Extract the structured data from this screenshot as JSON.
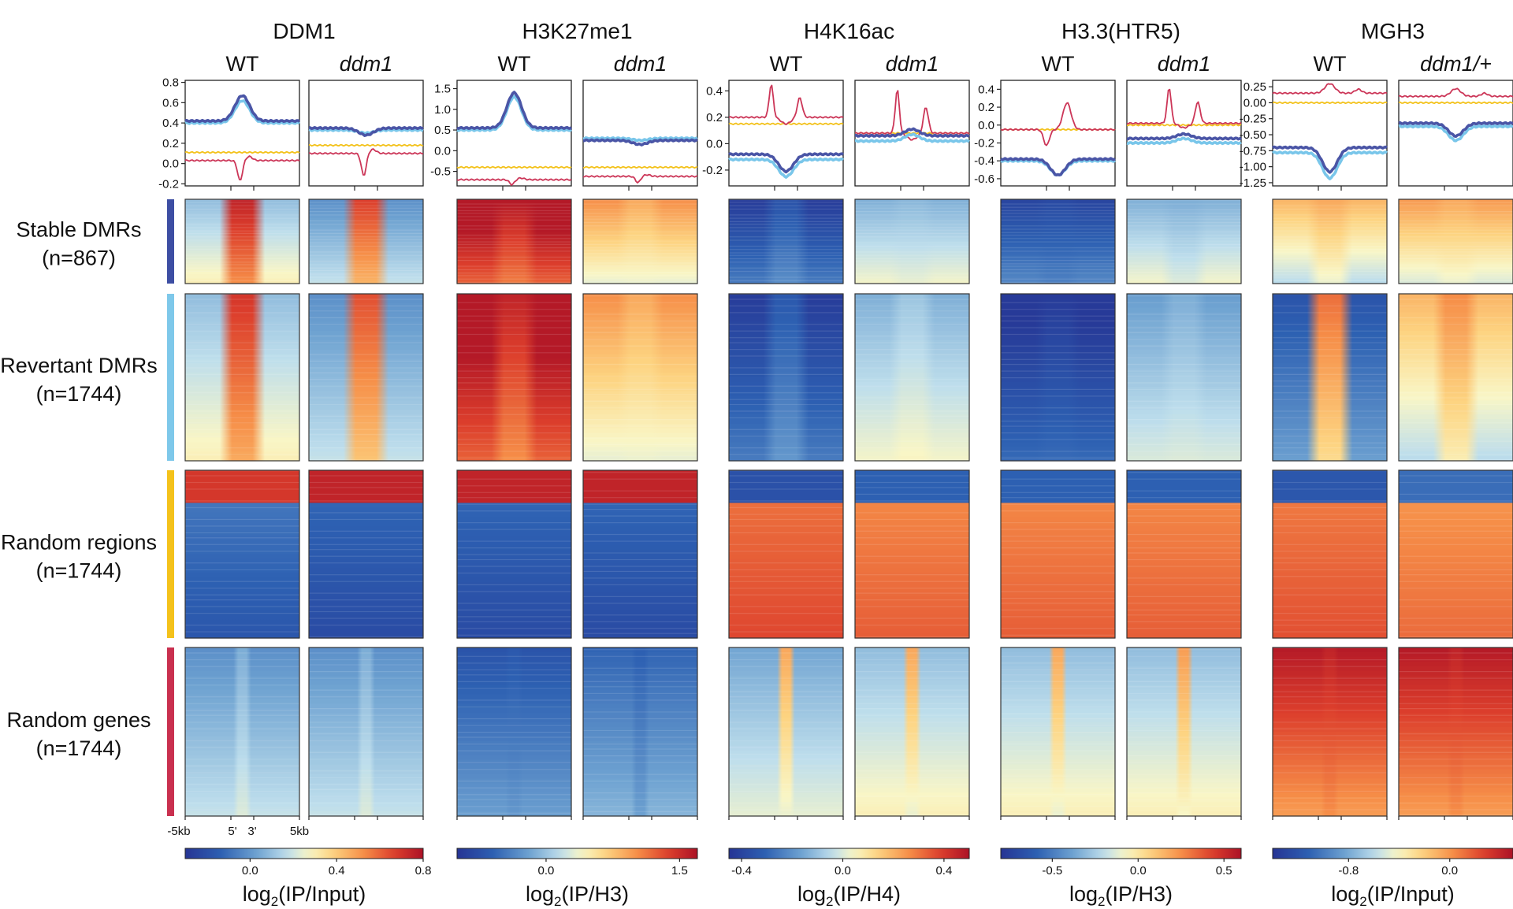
{
  "chart_data": {
    "type": "heatmap",
    "description_text": "Profile plots and heatmaps of chromatin marks over DMR and control regions",
    "x_axis": {
      "ticks": [
        "-5kb",
        "5'",
        "3'",
        "5kb"
      ]
    },
    "rows": [
      {
        "label": "Stable DMRs",
        "n": "(n=867)",
        "color": "#3d4ea3",
        "pattern": "stable"
      },
      {
        "label": "Revertant DMRs",
        "n": "(n=1744)",
        "color": "#7ec8ea",
        "pattern": "revertant"
      },
      {
        "label": "Random regions",
        "n": "(n=1744)",
        "color": "#f4c21b",
        "pattern": "regions"
      },
      {
        "label": "Random genes",
        "n": "(n=1744)",
        "color": "#c9304f",
        "pattern": "genes"
      }
    ],
    "line_colors": {
      "stable": "#4a55a6",
      "revertant": "#79c6ea",
      "regions": "#f3c21c",
      "genes": "#cc3658"
    },
    "marks": [
      {
        "title": "DDM1",
        "conditions": [
          {
            "label": "WT",
            "italic": false
          },
          {
            "label": "ddm1",
            "italic": true
          }
        ],
        "yticks": [
          "0.8",
          "0.6",
          "0.4",
          "0.2",
          "0.0",
          "-0.2"
        ],
        "ylim": [
          -0.22,
          0.82
        ],
        "profiles": [
          {
            "stable": {
              "base": 0.42,
              "peak": 0.25
            },
            "revertant": {
              "base": 0.4,
              "peak": 0.22
            },
            "regions": {
              "base": 0.11,
              "peak": 0.0
            },
            "genes": {
              "base": 0.03,
              "dip": -0.2
            }
          },
          {
            "stable": {
              "base": 0.35,
              "peak": -0.07
            },
            "revertant": {
              "base": 0.33,
              "peak": -0.03
            },
            "regions": {
              "base": 0.18,
              "peak": 0.0
            },
            "genes": {
              "base": 0.1,
              "dip": -0.22
            }
          }
        ],
        "heat": [
          {
            "stable": [
              0.45,
              0.55,
              0.85
            ],
            "revertant": [
              0.45,
              0.58,
              0.8
            ],
            "regions": [
              0.1,
              0.55,
              0.1
            ],
            "genes": [
              0.35,
              0.22,
              0.4
            ]
          },
          {
            "stable": [
              0.35,
              0.48,
              0.78
            ],
            "revertant": [
              0.35,
              0.48,
              0.75
            ],
            "regions": [
              0.05,
              0.55,
              0.05
            ],
            "genes": [
              0.35,
              0.25,
              0.4
            ]
          }
        ],
        "colorbar": {
          "ticks": [
            "0.0",
            "0.4",
            "0.8"
          ],
          "tick_values": [
            0.0,
            0.4,
            0.8
          ],
          "range": [
            -0.3,
            0.8
          ],
          "label_pre": "log",
          "label_sub": "2",
          "label_post": "(IP/Input)"
        }
      },
      {
        "title": "H3K27me1",
        "conditions": [
          {
            "label": "WT",
            "italic": false
          },
          {
            "label": "ddm1",
            "italic": true
          }
        ],
        "yticks": [
          "1.5",
          "1.0",
          "0.5",
          "0.0",
          "-0.5"
        ],
        "ylim": [
          -0.85,
          1.7
        ],
        "profiles": [
          {
            "stable": {
              "base": 0.55,
              "peak": 0.85
            },
            "revertant": {
              "base": 0.5,
              "peak": 0.8
            },
            "regions": {
              "base": -0.4,
              "peak": 0.0
            },
            "genes": {
              "base": -0.7,
              "dip": -0.12
            }
          },
          {
            "stable": {
              "base": 0.25,
              "peak": -0.1
            },
            "revertant": {
              "base": 0.3,
              "peak": -0.05
            },
            "regions": {
              "base": -0.4,
              "peak": 0.0
            },
            "genes": {
              "base": -0.62,
              "dip": -0.15
            }
          }
        ],
        "heat": [
          {
            "stable": [
              0.95,
              0.5,
              0.88
            ],
            "revertant": [
              0.95,
              0.55,
              0.85
            ],
            "regions": [
              0.05,
              0.2,
              0.05
            ],
            "genes": [
              0.2,
              0.18,
              0.2
            ]
          },
          {
            "stable": [
              0.62,
              0.58,
              0.6
            ],
            "revertant": [
              0.62,
              0.56,
              0.6
            ],
            "regions": [
              0.05,
              0.22,
              0.05
            ],
            "genes": [
              0.25,
              0.2,
              0.22
            ]
          }
        ],
        "colorbar": {
          "ticks": [
            "0.0",
            "1.5"
          ],
          "tick_values": [
            0.0,
            1.5
          ],
          "range": [
            -1.0,
            1.7
          ],
          "label_pre": "log",
          "label_sub": "2",
          "label_post": "(IP/H3)"
        }
      },
      {
        "title": "H4K16ac",
        "conditions": [
          {
            "label": "WT",
            "italic": false
          },
          {
            "label": "ddm1",
            "italic": true
          }
        ],
        "yticks": [
          "0.4",
          "0.2",
          "0.0",
          "-0.2"
        ],
        "ylim": [
          -0.32,
          0.48
        ],
        "profiles": [
          {
            "stable": {
              "base": -0.08,
              "peak": -0.13
            },
            "revertant": {
              "base": -0.12,
              "peak": -0.13
            },
            "regions": {
              "base": 0.15,
              "peak": 0.0
            },
            "genes": {
              "base": 0.2,
              "spike": 0.25
            }
          },
          {
            "stable": {
              "base": 0.06,
              "peak": 0.05
            },
            "revertant": {
              "base": 0.02,
              "peak": 0.05
            },
            "regions": {
              "base": 0.08,
              "peak": 0.0
            },
            "genes": {
              "base": 0.08,
              "spike": 0.33
            }
          }
        ],
        "heat": [
          {
            "stable": [
              0.12,
              0.55,
              0.18
            ],
            "revertant": [
              0.12,
              0.55,
              0.2
            ],
            "regions": [
              0.9,
              0.55,
              0.9
            ],
            "genes": [
              0.4,
              0.8,
              0.6
            ]
          },
          {
            "stable": [
              0.42,
              0.52,
              0.42
            ],
            "revertant": [
              0.42,
              0.5,
              0.45
            ],
            "regions": [
              0.85,
              0.55,
              0.85
            ],
            "genes": [
              0.45,
              0.88,
              0.6
            ]
          }
        ],
        "colorbar": {
          "ticks": [
            "-0.4",
            "0.0",
            "0.4"
          ],
          "tick_values": [
            -0.4,
            0.0,
            0.4
          ],
          "range": [
            -0.45,
            0.5
          ],
          "label_pre": "log",
          "label_sub": "2",
          "label_post": "(IP/H4)"
        }
      },
      {
        "title": "H3.3(HTR5)",
        "conditions": [
          {
            "label": "WT",
            "italic": false
          },
          {
            "label": "ddm1",
            "italic": true
          }
        ],
        "yticks": [
          "0.4",
          "0.2",
          "0.0",
          "-0.2",
          "-0.4",
          "-0.6"
        ],
        "ylim": [
          -0.68,
          0.5
        ],
        "profiles": [
          {
            "stable": {
              "base": -0.38,
              "peak": -0.18
            },
            "revertant": {
              "base": -0.4,
              "peak": -0.16
            },
            "regions": {
              "base": -0.05,
              "peak": 0.0
            },
            "genes": {
              "base": -0.05,
              "zigzag": 0.3
            }
          },
          {
            "stable": {
              "base": -0.15,
              "peak": 0.05
            },
            "revertant": {
              "base": -0.2,
              "peak": 0.05
            },
            "regions": {
              "base": 0.0,
              "peak": 0.0
            },
            "genes": {
              "base": 0.02,
              "spike": 0.4
            }
          }
        ],
        "heat": [
          {
            "stable": [
              0.15,
              0.6,
              0.15
            ],
            "revertant": [
              0.08,
              0.62,
              0.1
            ],
            "regions": [
              0.85,
              0.55,
              0.85
            ],
            "genes": [
              0.45,
              0.9,
              0.6
            ]
          },
          {
            "stable": [
              0.42,
              0.5,
              0.4
            ],
            "revertant": [
              0.38,
              0.5,
              0.4
            ],
            "regions": [
              0.85,
              0.55,
              0.85
            ],
            "genes": [
              0.45,
              0.92,
              0.62
            ]
          }
        ],
        "colorbar": {
          "ticks": [
            "-0.5",
            "0.0",
            "0.5"
          ],
          "tick_values": [
            -0.5,
            0.0,
            0.5
          ],
          "range": [
            -0.8,
            0.6
          ],
          "label_pre": "log",
          "label_sub": "2",
          "label_post": "(IP/H3)"
        }
      },
      {
        "title": "MGH3",
        "conditions": [
          {
            "label": "WT",
            "italic": false
          },
          {
            "label": "ddm1/+",
            "italic": true
          }
        ],
        "yticks": [
          "0.25",
          "0.00",
          "-0.25",
          "-0.50",
          "-0.75",
          "-1.00",
          "-1.25"
        ],
        "ylim": [
          -1.3,
          0.35
        ],
        "profiles": [
          {
            "stable": {
              "base": -0.7,
              "peak": -0.38
            },
            "revertant": {
              "base": -0.78,
              "peak": -0.4
            },
            "regions": {
              "base": 0.0,
              "peak": 0.0
            },
            "genes": {
              "base": 0.15,
              "bump": 0.15
            }
          },
          {
            "stable": {
              "base": -0.32,
              "peak": -0.2
            },
            "revertant": {
              "base": -0.37,
              "peak": -0.22
            },
            "regions": {
              "base": 0.0,
              "peak": 0.0
            },
            "genes": {
              "base": 0.1,
              "bump": 0.12
            }
          }
        ],
        "heat": [
          {
            "stable": [
              0.55,
              0.55,
              0.6
            ],
            "revertant": [
              0.2,
              0.55,
              0.7
            ],
            "regions": [
              0.88,
              0.3,
              0.88
            ],
            "genes": [
              0.85,
              0.95,
              0.85
            ]
          },
          {
            "stable": [
              0.6,
              0.55,
              0.6
            ],
            "revertant": [
              0.55,
              0.6,
              0.65
            ],
            "regions": [
              0.82,
              0.4,
              0.82
            ],
            "genes": [
              0.85,
              0.92,
              0.85
            ]
          }
        ],
        "colorbar": {
          "ticks": [
            "-0.8",
            "0.0"
          ],
          "tick_values": [
            -0.8,
            0.0
          ],
          "range": [
            -1.4,
            0.5
          ],
          "label_pre": "log",
          "label_sub": "2",
          "label_post": "(IP/Input)"
        }
      }
    ]
  }
}
